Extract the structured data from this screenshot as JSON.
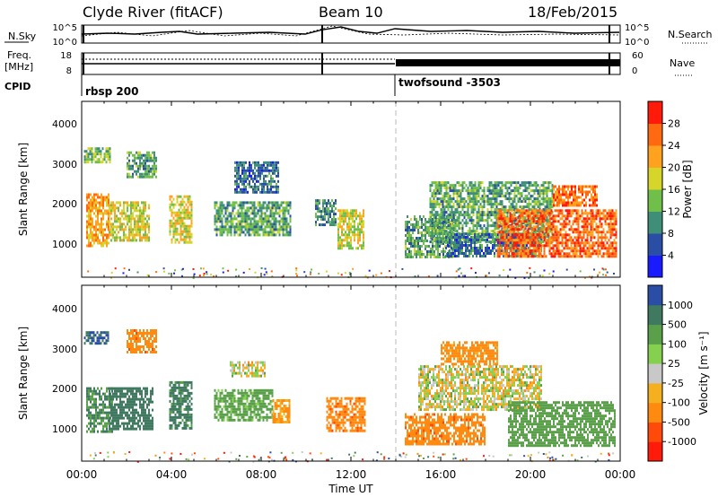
{
  "header": {
    "station": "Clyde River (fitACF)",
    "beam": "Beam 10",
    "date": "18/Feb/2015"
  },
  "nsky_panel": {
    "left_label": "N.Sky",
    "right_label": "N.Search",
    "left_ticks": [
      "10^5",
      "10^0"
    ],
    "right_ticks": [
      "10^5",
      "10^0"
    ]
  },
  "freq_panel": {
    "left_label_1": "Freq.",
    "left_label_2": "[MHz]",
    "right_label": "Nave",
    "left_ticks": [
      "18",
      "8"
    ],
    "right_ticks": [
      "60",
      "0"
    ]
  },
  "cpid": {
    "label": "CPID",
    "modes": [
      {
        "name": "rbsp 200",
        "start_hour": 0
      },
      {
        "name": "twofsound -3503",
        "start_hour": 14
      }
    ]
  },
  "time_axis": {
    "label": "Time UT",
    "ticks": [
      "00:00",
      "04:00",
      "08:00",
      "12:00",
      "16:00",
      "20:00",
      "00:00"
    ]
  },
  "chart_data": [
    {
      "type": "heatmap",
      "name": "Power",
      "ylabel": "Slant Range [km]",
      "y_ticks": [
        "1000",
        "2000",
        "3000",
        "4000"
      ],
      "ylim": [
        200,
        4600
      ],
      "xlim_hours": [
        0,
        24
      ],
      "colorbar": {
        "label": "Power [dB]",
        "ticks": [
          "4",
          "8",
          "12",
          "16",
          "20",
          "24",
          "28"
        ],
        "colors": [
          "#1a1aff",
          "#2a4ea6",
          "#3f8f78",
          "#6fbf4a",
          "#d6d62a",
          "#ffa21f",
          "#ff6a10",
          "#ff1a0a"
        ]
      },
      "echo_regions": [
        {
          "t": [
            0.2,
            1.2
          ],
          "r": [
            1000,
            2300
          ],
          "value": 22
        },
        {
          "t": [
            0.1,
            1.3
          ],
          "r": [
            3050,
            3450
          ],
          "value": 14
        },
        {
          "t": [
            1.2,
            3.0
          ],
          "r": [
            1150,
            2100
          ],
          "value": 18
        },
        {
          "t": [
            2.0,
            3.3
          ],
          "r": [
            2700,
            3350
          ],
          "value": 12
        },
        {
          "t": [
            3.9,
            4.9
          ],
          "r": [
            1100,
            2250
          ],
          "value": 18
        },
        {
          "t": [
            5.9,
            9.3
          ],
          "r": [
            1250,
            2100
          ],
          "value": 12
        },
        {
          "t": [
            6.8,
            8.8
          ],
          "r": [
            2350,
            3100
          ],
          "value": 8
        },
        {
          "t": [
            10.4,
            11.3
          ],
          "r": [
            1500,
            2150
          ],
          "value": 10
        },
        {
          "t": [
            11.4,
            12.6
          ],
          "r": [
            950,
            1900
          ],
          "value": 18
        },
        {
          "t": [
            14.4,
            16.6
          ],
          "r": [
            700,
            1750
          ],
          "value": 12
        },
        {
          "t": [
            15.5,
            21.0
          ],
          "r": [
            1100,
            2600
          ],
          "value": 12
        },
        {
          "t": [
            16.2,
            20.5
          ],
          "r": [
            750,
            1300
          ],
          "value": 8
        },
        {
          "t": [
            18.5,
            23.8
          ],
          "r": [
            700,
            1900
          ],
          "value": 26
        },
        {
          "t": [
            21.0,
            23.0
          ],
          "r": [
            2000,
            2500
          ],
          "value": 26
        }
      ]
    },
    {
      "type": "heatmap",
      "name": "Velocity",
      "ylabel": "Slant Range [km]",
      "y_ticks": [
        "1000",
        "2000",
        "3000",
        "4000"
      ],
      "ylim": [
        200,
        4600
      ],
      "xlim_hours": [
        0,
        24
      ],
      "colorbar": {
        "label": "Velocity [m s⁻¹]",
        "ticks": [
          "1000",
          "500",
          "100",
          "25",
          "-25",
          "-100",
          "-500",
          "-1000"
        ],
        "colors": [
          "#2a4ea6",
          "#3f7a60",
          "#5aa04a",
          "#86d050",
          "#c8c8c8",
          "#f5b020",
          "#ff8a10",
          "#ff4a0a",
          "#ff1a0a"
        ]
      },
      "echo_regions": [
        {
          "t": [
            0.2,
            1.4
          ],
          "r": [
            950,
            2050
          ],
          "value": 500
        },
        {
          "t": [
            0.1,
            1.2
          ],
          "r": [
            3150,
            3450
          ],
          "value": 1000
        },
        {
          "t": [
            1.2,
            3.2
          ],
          "r": [
            1000,
            2050
          ],
          "value": 700
        },
        {
          "t": [
            2.0,
            3.3
          ],
          "r": [
            2900,
            3500
          ],
          "value": -400
        },
        {
          "t": [
            3.9,
            4.9
          ],
          "r": [
            1000,
            2200
          ],
          "value": 600
        },
        {
          "t": [
            5.9,
            8.5
          ],
          "r": [
            1200,
            2000
          ],
          "value": 200
        },
        {
          "t": [
            6.6,
            8.2
          ],
          "r": [
            2300,
            2700
          ],
          "value": 0
        },
        {
          "t": [
            8.5,
            9.3
          ],
          "r": [
            1150,
            1750
          ],
          "value": -150
        },
        {
          "t": [
            10.9,
            12.6
          ],
          "r": [
            950,
            1800
          ],
          "value": -400
        },
        {
          "t": [
            14.4,
            18.0
          ],
          "r": [
            600,
            1400
          ],
          "value": -400
        },
        {
          "t": [
            15.0,
            20.5
          ],
          "r": [
            1500,
            2600
          ],
          "value": 0
        },
        {
          "t": [
            16.0,
            18.5
          ],
          "r": [
            2600,
            3200
          ],
          "value": -200
        },
        {
          "t": [
            19.0,
            23.8
          ],
          "r": [
            600,
            1700
          ],
          "value": 300
        }
      ]
    }
  ]
}
